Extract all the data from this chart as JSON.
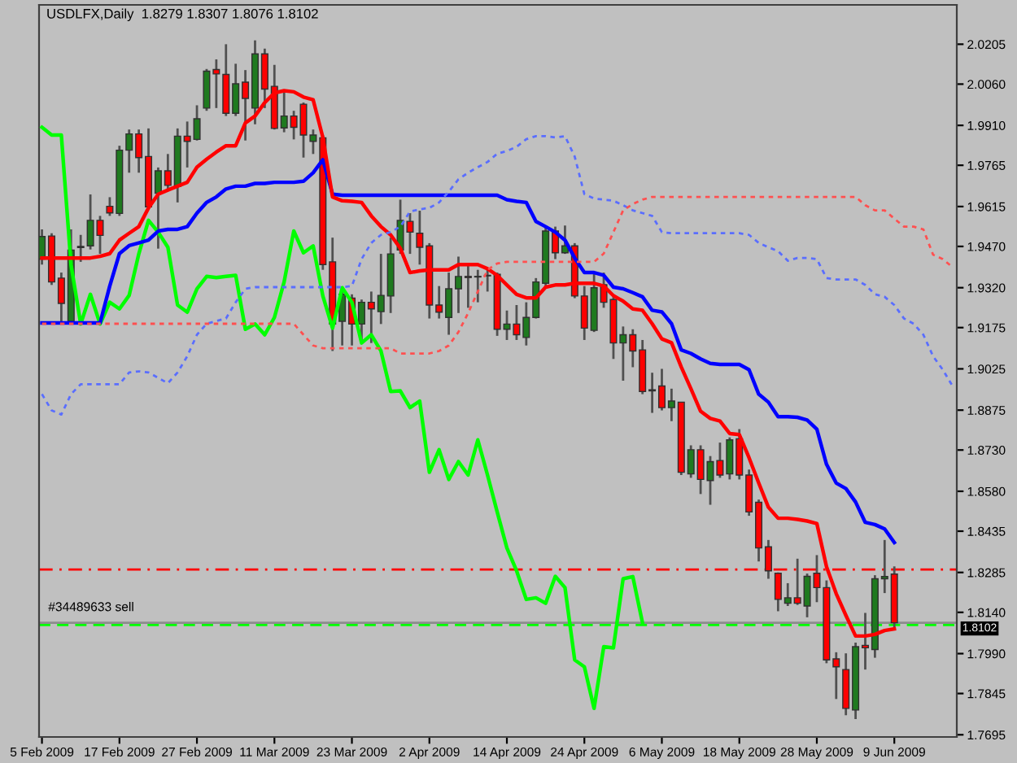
{
  "chart_data": {
    "type": "candlestick",
    "annotations": [
      "USDLFX,Daily  1.8279 1.8307 1.8076 1.8102"
    ],
    "categories": [
      "5 Feb 2009",
      null,
      null,
      null,
      null,
      null,
      null,
      null,
      "17 Feb 2009",
      null,
      null,
      null,
      null,
      null,
      null,
      null,
      "27 Feb 2009",
      null,
      null,
      null,
      null,
      null,
      null,
      null,
      "11 Mar 2009",
      null,
      null,
      null,
      null,
      null,
      null,
      null,
      "23 Mar 2009",
      null,
      null,
      null,
      null,
      null,
      null,
      null,
      "2 Apr 2009",
      null,
      null,
      null,
      null,
      null,
      null,
      null,
      "14 Apr 2009",
      null,
      null,
      null,
      null,
      null,
      null,
      null,
      "24 Apr 2009",
      null,
      null,
      null,
      null,
      null,
      null,
      null,
      "6 May 2009",
      null,
      null,
      null,
      null,
      null,
      null,
      null,
      "18 May 2009",
      null,
      null,
      null,
      null,
      null,
      null,
      null,
      "28 May 2009",
      null,
      null,
      null,
      null,
      null,
      null,
      null,
      "9 Jun 2009",
      null,
      null,
      null,
      null,
      null,
      null
    ],
    "ohlc": [
      [
        1.9424,
        1.9532,
        1.9404,
        1.9506
      ],
      [
        1.9508,
        1.9518,
        1.933,
        1.9341
      ],
      [
        1.9355,
        1.9375,
        1.9188,
        1.9263
      ],
      [
        1.9198,
        1.9532,
        1.9188,
        1.9457
      ],
      [
        1.9466,
        1.9512,
        1.9414,
        1.947
      ],
      [
        1.9472,
        1.9659,
        1.9459,
        1.9565
      ],
      [
        1.9565,
        1.9581,
        1.9443,
        1.951
      ],
      [
        1.9616,
        1.9649,
        1.9581,
        1.9592
      ],
      [
        1.959,
        1.9836,
        1.9581,
        1.982
      ],
      [
        1.982,
        1.9895,
        1.9738,
        1.9879
      ],
      [
        1.9879,
        1.9895,
        1.9738,
        1.9793
      ],
      [
        1.9797,
        1.9899,
        1.961,
        1.9614
      ],
      [
        1.9663,
        1.9757,
        1.9462,
        1.9745
      ],
      [
        1.9745,
        1.9806,
        1.9679,
        1.9692
      ],
      [
        1.9688,
        1.9899,
        1.963,
        1.9871
      ],
      [
        1.9871,
        1.9924,
        1.9757,
        1.9852
      ],
      [
        1.9859,
        1.9983,
        1.9855,
        1.9934
      ],
      [
        1.9973,
        2.0115,
        1.9963,
        2.0107
      ],
      [
        2.0113,
        2.015,
        1.9973,
        2.0097
      ],
      [
        2.0095,
        2.0205,
        1.9944,
        1.9954
      ],
      [
        1.9954,
        2.0134,
        1.9944,
        2.0061
      ],
      [
        2.0067,
        2.0111,
        1.9855,
        2.0008
      ],
      [
        1.9973,
        2.0219,
        1.9914,
        2.017
      ],
      [
        2.017,
        2.0189,
        1.9973,
        2.0042
      ],
      [
        2.0052,
        2.013,
        1.9895,
        1.9899
      ],
      [
        1.9901,
        2.0032,
        1.9885,
        1.9944
      ],
      [
        1.9944,
        1.9963,
        1.9859,
        1.9903
      ],
      [
        1.9987,
        1.9993,
        1.9793,
        1.9875
      ],
      [
        1.9852,
        1.9895,
        1.9806,
        1.9875
      ],
      [
        1.9865,
        1.9875,
        1.9385,
        1.9404
      ],
      [
        1.9414,
        1.9502,
        1.909,
        1.9188
      ],
      [
        1.9198,
        1.9316,
        1.911,
        1.9296
      ],
      [
        1.9282,
        1.9296,
        1.911,
        1.9188
      ],
      [
        1.9188,
        1.9277,
        1.9119,
        1.9267
      ],
      [
        1.9267,
        1.9306,
        1.9119,
        1.9243
      ],
      [
        1.9233,
        1.9443,
        1.9188,
        1.9292
      ],
      [
        1.929,
        1.9502,
        1.9228,
        1.9443
      ],
      [
        1.9457,
        1.964,
        1.9443,
        1.9565
      ],
      [
        1.9561,
        1.9591,
        1.9443,
        1.9522
      ],
      [
        1.9518,
        1.96,
        1.9404,
        1.9467
      ],
      [
        1.9472,
        1.9482,
        1.9208,
        1.9257
      ],
      [
        1.9257,
        1.9326,
        1.9208,
        1.9231
      ],
      [
        1.9212,
        1.9375,
        1.9149,
        1.9316
      ],
      [
        1.9316,
        1.9433,
        1.9228,
        1.9361
      ],
      [
        1.9361,
        1.9404,
        1.9247,
        1.9357
      ],
      [
        1.9359,
        1.9385,
        1.9267,
        1.9361
      ],
      [
        1.9363,
        1.9385,
        1.9306,
        1.9365
      ],
      [
        1.9369,
        1.9375,
        1.9145,
        1.9169
      ],
      [
        1.9169,
        1.9237,
        1.913,
        1.9188
      ],
      [
        1.9188,
        1.9257,
        1.913,
        1.9149
      ],
      [
        1.9139,
        1.9267,
        1.911,
        1.9212
      ],
      [
        1.9212,
        1.9355,
        1.9208,
        1.9341
      ],
      [
        1.9336,
        1.9542,
        1.9326,
        1.9526
      ],
      [
        1.9526,
        1.9542,
        1.9424,
        1.9447
      ],
      [
        1.9447,
        1.9546,
        1.9443,
        1.9472
      ],
      [
        1.9472,
        1.9482,
        1.9282,
        1.929
      ],
      [
        1.929,
        1.9326,
        1.913,
        1.9173
      ],
      [
        1.9165,
        1.9375,
        1.9159,
        1.932
      ],
      [
        1.9331,
        1.9375,
        1.9247,
        1.9267
      ],
      [
        1.9277,
        1.9286,
        1.9061,
        1.9119
      ],
      [
        1.9119,
        1.9179,
        1.8982,
        1.9149
      ],
      [
        1.9149,
        1.9169,
        1.9031,
        1.909
      ],
      [
        1.9094,
        1.913,
        1.8933,
        1.8943
      ],
      [
        1.8949,
        1.9011,
        1.8865,
        1.8945
      ],
      [
        1.8963,
        1.9025,
        1.8874,
        1.8884
      ],
      [
        1.8884,
        1.8953,
        1.8835,
        1.8908
      ],
      [
        1.8904,
        1.8904,
        1.8639,
        1.8649
      ],
      [
        1.8643,
        1.8747,
        1.8629,
        1.8731
      ],
      [
        1.8731,
        1.8747,
        1.857,
        1.8623
      ],
      [
        1.8619,
        1.8708,
        1.8531,
        1.8688
      ],
      [
        1.8692,
        1.8757,
        1.8629,
        1.8639
      ],
      [
        1.8643,
        1.8776,
        1.8623,
        1.8767
      ],
      [
        1.8771,
        1.8806,
        1.8623,
        1.8639
      ],
      [
        1.8639,
        1.8659,
        1.8491,
        1.8505
      ],
      [
        1.854,
        1.855,
        1.8325,
        1.8374
      ],
      [
        1.8378,
        1.8403,
        1.8262,
        1.8291
      ],
      [
        1.8282,
        1.8285,
        1.8144,
        1.8187
      ],
      [
        1.8173,
        1.8246,
        1.8163,
        1.8193
      ],
      [
        1.8193,
        1.8335,
        1.8167,
        1.8173
      ],
      [
        1.8163,
        1.8281,
        1.8122,
        1.8271
      ],
      [
        1.8282,
        1.8348,
        1.8177,
        1.823
      ],
      [
        1.823,
        1.8256,
        1.7955,
        1.7967
      ],
      [
        1.7971,
        1.7995,
        1.7825,
        1.7942
      ],
      [
        1.7932,
        1.7991,
        1.7766,
        1.7791
      ],
      [
        1.7785,
        1.803,
        1.7752,
        1.8015
      ],
      [
        1.802,
        1.8138,
        1.7932,
        1.8011
      ],
      [
        1.8005,
        1.8275,
        1.7975,
        1.8262
      ],
      [
        1.8262,
        1.8403,
        1.821,
        1.827
      ],
      [
        1.8279,
        1.8307,
        1.8076,
        1.8102
      ],
      null,
      null,
      null,
      null,
      null,
      null
    ],
    "colors": [
      "#1f7a1f",
      "#ff0000",
      "#ff0000",
      "#1f7a1f",
      "#1f7a1f",
      "#1f7a1f",
      "#ff0000",
      "#ff0000",
      "#1f7a1f",
      "#1f7a1f",
      "#ff0000",
      "#ff0000",
      "#1f7a1f",
      "#ff0000",
      "#1f7a1f",
      "#ff0000",
      "#1f7a1f",
      "#1f7a1f",
      "#ff0000",
      "#ff0000",
      "#1f7a1f",
      "#ff0000",
      "#1f7a1f",
      "#ff0000",
      "#ff0000",
      "#1f7a1f",
      "#ff0000",
      "#ff0000",
      "#1f7a1f",
      "#ff0000",
      "#ff0000",
      "#1f7a1f",
      "#ff0000",
      "#1f7a1f",
      "#ff0000",
      "#1f7a1f",
      "#1f7a1f",
      "#1f7a1f",
      "#ff0000",
      "#ff0000",
      "#ff0000",
      "#ff0000",
      "#1f7a1f",
      "#1f7a1f",
      "#ff0000",
      "#1f7a1f",
      "#1f7a1f",
      "#ff0000",
      "#1f7a1f",
      "#ff0000",
      "#1f7a1f",
      "#1f7a1f",
      "#1f7a1f",
      "#ff0000",
      "#1f7a1f",
      "#ff0000",
      "#ff0000",
      "#1f7a1f",
      "#ff0000",
      "#ff0000",
      "#1f7a1f",
      "#ff0000",
      "#ff0000",
      "#ff0000",
      "#ff0000",
      "#1f7a1f",
      "#ff0000",
      "#1f7a1f",
      "#ff0000",
      "#1f7a1f",
      "#ff0000",
      "#1f7a1f",
      "#ff0000",
      "#ff0000",
      "#ff0000",
      "#ff0000",
      "#ff0000",
      "#1f7a1f",
      "#ff0000",
      "#1f7a1f",
      "#ff0000",
      "#ff0000",
      "#ff0000",
      "#ff0000",
      "#1f7a1f",
      "#ff0000",
      "#1f7a1f",
      "#1f7a1f",
      "#ff0000",
      null,
      null,
      null,
      null,
      null,
      null
    ],
    "series": [
      {
        "type": "line",
        "color": "#5a6eff",
        "line_style": "dotted",
        "values": [
          1.8933,
          1.8874,
          1.8859,
          1.8933,
          1.8969,
          1.8969,
          1.8969,
          1.8969,
          1.8969,
          1.9012,
          1.9016,
          1.9012,
          1.8992,
          1.8973,
          1.9012,
          1.9071,
          1.9149,
          1.9189,
          1.9199,
          1.9208,
          1.9267,
          1.9316,
          1.9322,
          1.9322,
          1.9322,
          1.9322,
          1.9322,
          1.9322,
          1.9322,
          1.9322,
          1.9322,
          1.9322,
          1.9326,
          1.9424,
          1.9483,
          1.9512,
          1.9522,
          1.9542,
          1.9597,
          1.9605,
          1.961,
          1.963,
          1.9669,
          1.9714,
          1.9738,
          1.9758,
          1.9777,
          1.9807,
          1.9817,
          1.9832,
          1.986,
          1.9871,
          1.9871,
          1.9866,
          1.9871,
          1.9797,
          1.966,
          1.9644,
          1.964,
          1.9636,
          1.962,
          1.9601,
          1.9591,
          1.9581,
          1.9522,
          1.9518,
          1.9518,
          1.9518,
          1.9518,
          1.9518,
          1.9518,
          1.9518,
          1.9518,
          1.9512,
          1.9483,
          1.9467,
          1.9453,
          1.9418,
          1.9428,
          1.9428,
          1.9424,
          1.9355,
          1.935,
          1.935,
          1.935,
          1.933,
          1.9296,
          1.9287,
          1.9257,
          1.9208,
          1.9189,
          1.9149,
          1.9071,
          1.9022,
          1.8963
        ]
      },
      {
        "type": "line",
        "color": "#ff5050",
        "line_style": "dotted",
        "values": [
          1.9189,
          1.9189,
          1.9189,
          1.9189,
          1.9189,
          1.9189,
          1.9189,
          1.9189,
          1.9189,
          1.9189,
          1.9189,
          1.9189,
          1.9189,
          1.9189,
          1.9189,
          1.9189,
          1.9189,
          1.9189,
          1.9189,
          1.9189,
          1.9189,
          1.9189,
          1.9189,
          1.9189,
          1.9189,
          1.9189,
          1.9189,
          1.9149,
          1.911,
          1.91,
          1.91,
          1.91,
          1.91,
          1.91,
          1.91,
          1.91,
          1.91,
          1.9081,
          1.9081,
          1.9081,
          1.9081,
          1.909,
          1.911,
          1.9159,
          1.9228,
          1.9306,
          1.9385,
          1.9408,
          1.9414,
          1.9414,
          1.9414,
          1.9414,
          1.9414,
          1.9414,
          1.9414,
          1.9414,
          1.9414,
          1.9414,
          1.9444,
          1.9522,
          1.9601,
          1.9624,
          1.964,
          1.965,
          1.965,
          1.965,
          1.965,
          1.965,
          1.965,
          1.965,
          1.965,
          1.965,
          1.965,
          1.965,
          1.965,
          1.965,
          1.965,
          1.965,
          1.965,
          1.965,
          1.965,
          1.965,
          1.965,
          1.965,
          1.965,
          1.962,
          1.9601,
          1.9601,
          1.9571,
          1.9542,
          1.9542,
          1.9532,
          1.944,
          1.9424,
          1.9395
        ]
      },
      {
        "type": "line",
        "color": "#00ff00",
        "line_style": "solid",
        "values": [
          1.9903,
          1.9875,
          1.9875,
          1.9404,
          1.9188,
          1.9296,
          1.9188,
          1.9267,
          1.9243,
          1.9292,
          1.9443,
          1.9565,
          1.9522,
          1.9467,
          1.9257,
          1.9231,
          1.9316,
          1.9361,
          1.9357,
          1.9361,
          1.9365,
          1.9169,
          1.9188,
          1.9149,
          1.9212,
          1.9341,
          1.9526,
          1.9447,
          1.9472,
          1.929,
          1.9173,
          1.932,
          1.9267,
          1.9119,
          1.9149,
          1.909,
          1.8943,
          1.8945,
          1.8884,
          1.8908,
          1.8649,
          1.8731,
          1.8623,
          1.8688,
          1.8639,
          1.8767,
          1.8639,
          1.8505,
          1.8374,
          1.8291,
          1.8187,
          1.8193,
          1.8173,
          1.8271,
          1.823,
          1.7967,
          1.7942,
          1.7791,
          1.8015,
          1.8011,
          1.8262,
          1.827,
          1.8102,
          null,
          null,
          null,
          null,
          null,
          null,
          null,
          null,
          null,
          null,
          null,
          null,
          null,
          null,
          null,
          null,
          null,
          null,
          null,
          null,
          null,
          null,
          null,
          null,
          null,
          null,
          null,
          null,
          null,
          null,
          null,
          null
        ]
      },
      {
        "type": "line",
        "color": "#0000ff",
        "line_style": "solid",
        "values": [
          1.9192,
          1.9192,
          1.9192,
          1.9192,
          1.9192,
          1.9192,
          1.9192,
          1.9326,
          1.9444,
          1.9473,
          1.9483,
          1.9493,
          1.9526,
          1.9532,
          1.9532,
          1.9542,
          1.9591,
          1.963,
          1.965,
          1.9679,
          1.9689,
          1.9689,
          1.9699,
          1.9699,
          1.9703,
          1.9703,
          1.9703,
          1.9707,
          1.9738,
          1.9785,
          1.966,
          1.9656,
          1.9656,
          1.9656,
          1.9656,
          1.9656,
          1.9656,
          1.9656,
          1.9656,
          1.9656,
          1.9656,
          1.9656,
          1.9656,
          1.9656,
          1.9656,
          1.9656,
          1.9656,
          1.9656,
          1.964,
          1.9634,
          1.963,
          1.9561,
          1.9542,
          1.9522,
          1.9493,
          1.9428,
          1.9375,
          1.9375,
          1.9365,
          1.9322,
          1.9316,
          1.9302,
          1.9287,
          1.9238,
          1.9232,
          1.9189,
          1.9094,
          1.9081,
          1.9061,
          1.9045,
          1.9041,
          1.9041,
          1.9041,
          1.9022,
          1.8933,
          1.8904,
          1.8851,
          1.8851,
          1.8849,
          1.8839,
          1.8806,
          1.8678,
          1.861,
          1.859,
          1.8541,
          1.8467,
          1.8459,
          1.8443,
          1.8394,
          null,
          null,
          null,
          null,
          null,
          null
        ]
      },
      {
        "type": "line",
        "color": "#ff0000",
        "line_style": "solid",
        "values": [
          1.9428,
          1.9428,
          1.9428,
          1.9428,
          1.9428,
          1.9428,
          1.9434,
          1.9444,
          1.9493,
          1.9518,
          1.9542,
          1.961,
          1.966,
          1.9675,
          1.9689,
          1.9703,
          1.9758,
          1.9787,
          1.9813,
          1.9836,
          1.9836,
          1.9919,
          1.9944,
          1.9993,
          2.0028,
          2.0036,
          2.0032,
          2.0013,
          2.0003,
          1.9866,
          1.965,
          1.9636,
          1.9634,
          1.963,
          1.9581,
          1.9542,
          1.9512,
          1.9463,
          1.9375,
          1.9381,
          1.9385,
          1.9385,
          1.9385,
          1.9404,
          1.9404,
          1.9404,
          1.9389,
          1.9365,
          1.933,
          1.9296,
          1.9283,
          1.9283,
          1.9322,
          1.933,
          1.933,
          1.9336,
          1.9336,
          1.9336,
          1.9326,
          1.9291,
          1.9271,
          1.9243,
          1.9238,
          1.9189,
          1.9134,
          1.912,
          1.9032,
          1.8953,
          1.8871,
          1.8845,
          1.8835,
          1.879,
          1.8786,
          1.8702,
          1.861,
          1.8522,
          1.8482,
          1.8482,
          1.8478,
          1.8472,
          1.8463,
          1.8306,
          1.8208,
          1.8129,
          1.8054,
          1.8054,
          1.806,
          1.8074,
          1.808,
          null,
          null,
          null,
          null,
          null,
          null
        ]
      }
    ],
    "ref_lines": [
      {
        "axis": "y",
        "value": 1.8296,
        "color": "#ff0000",
        "line_style": "dashdot"
      },
      {
        "axis": "y",
        "value": 1.8094,
        "label": "#34489633 sell",
        "color": "#00ff00",
        "line_style": "dashed"
      },
      {
        "axis": "y",
        "value": 1.8102,
        "label": "1.8102",
        "color": "#8c8c8c",
        "line_style": "solid"
      }
    ],
    "ylim": [
      1.7687,
      2.0348
    ],
    "yticks": [
      2.0205,
      {
        "value": 2.006,
        "label": "2.0060"
      },
      {
        "value": 1.991,
        "label": "1.9910"
      },
      1.9765,
      1.9615,
      {
        "value": 1.947,
        "label": "1.9470"
      },
      {
        "value": 1.932,
        "label": "1.9320"
      },
      1.9175,
      1.9025,
      1.8875,
      {
        "value": 1.873,
        "label": "1.8730"
      },
      {
        "value": 1.858,
        "label": "1.8580"
      },
      1.8435,
      1.8285,
      {
        "value": 1.814,
        "label": "1.8140"
      },
      {
        "value": 1.799,
        "label": "1.7990"
      },
      1.7845,
      1.7695
    ],
    "grid": false
  }
}
